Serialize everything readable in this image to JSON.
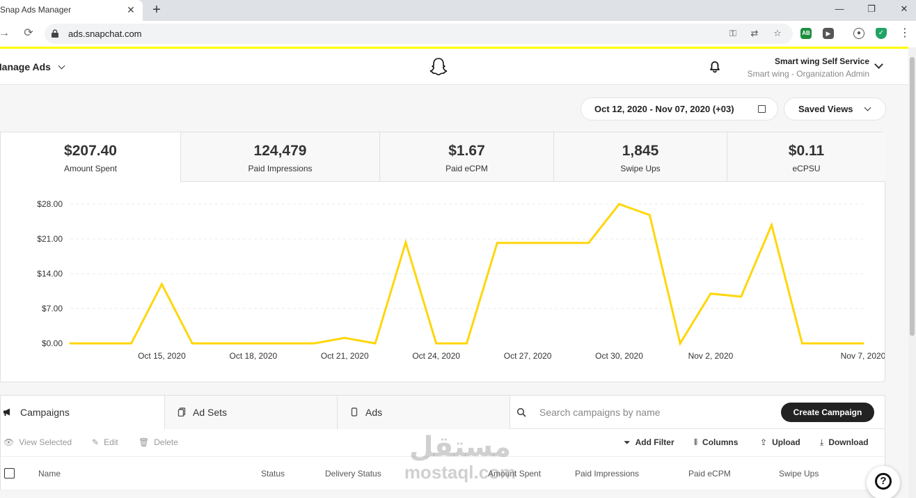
{
  "browser": {
    "tab_title": "Snap Ads Manager",
    "tab_close": "✕",
    "new_tab": "+",
    "url": "ads.snapchat.com",
    "window_minimize": "—",
    "window_restore": "❐",
    "window_close": "✕",
    "extension_ab": "AB"
  },
  "header": {
    "app_menu": "Manage Ads",
    "org_name": "Smart wing Self Service",
    "org_role": "Smart wing - Organization Admin"
  },
  "controls": {
    "date_range": "Oct 12, 2020 - Nov 07, 2020 (+03)",
    "saved_views": "Saved Views"
  },
  "metrics": [
    {
      "value": "$207.40",
      "label": "Amount Spent"
    },
    {
      "value": "124,479",
      "label": "Paid Impressions"
    },
    {
      "value": "$1.67",
      "label": "Paid eCPM"
    },
    {
      "value": "1,845",
      "label": "Swipe Ups"
    },
    {
      "value": "$0.11",
      "label": "eCPSU"
    }
  ],
  "chart_data": {
    "type": "line",
    "x": [
      "Oct 12",
      "Oct 13",
      "Oct 14",
      "Oct 15",
      "Oct 16",
      "Oct 17",
      "Oct 18",
      "Oct 19",
      "Oct 20",
      "Oct 21",
      "Oct 22",
      "Oct 23",
      "Oct 24",
      "Oct 25",
      "Oct 26",
      "Oct 27",
      "Oct 28",
      "Oct 29",
      "Oct 30",
      "Oct 31",
      "Nov 1",
      "Nov 2",
      "Nov 3",
      "Nov 4",
      "Nov 5",
      "Nov 6",
      "Nov 7"
    ],
    "series": [
      {
        "values": [
          0,
          0,
          0,
          11.9,
          0,
          0,
          0,
          0,
          0,
          1.1,
          0,
          20.3,
          0,
          0,
          20.2,
          20.2,
          20.2,
          20.2,
          28.0,
          25.8,
          0,
          10.0,
          9.4,
          23.8,
          0,
          0,
          0
        ],
        "color": "#ffd60a"
      }
    ],
    "xticks": [
      "Oct 15, 2020",
      "Oct 18, 2020",
      "Oct 21, 2020",
      "Oct 24, 2020",
      "Oct 27, 2020",
      "Oct 30, 2020",
      "Nov 2, 2020",
      "Nov 7, 2020"
    ],
    "xtick_index": [
      3,
      6,
      9,
      12,
      15,
      18,
      21,
      26
    ],
    "yticks": [
      "$0.00",
      "$7.00",
      "$14.00",
      "$21.00",
      "$28.00"
    ],
    "ytick_values": [
      0,
      7,
      14,
      21,
      28
    ],
    "ylim": [
      0,
      28
    ],
    "grid": true
  },
  "panel": {
    "tabs": [
      "Campaigns",
      "Ad Sets",
      "Ads"
    ],
    "search_placeholder": "Search campaigns by name",
    "create_button": "Create Campaign",
    "actions_left": [
      "View Selected",
      "Edit",
      "Delete"
    ],
    "actions_right": [
      "Add Filter",
      "Columns",
      "Upload",
      "Download"
    ],
    "columns": [
      "Name",
      "Status",
      "Delivery Status",
      "Amount Spent",
      "Paid Impressions",
      "Paid eCPM",
      "Swipe Ups"
    ]
  },
  "help": {
    "icon_text": "?"
  },
  "watermark": {
    "arabic": "مستقل",
    "latin": "mostaql.com"
  },
  "colors": {
    "brand_yellow": "#fffc00",
    "chart_line": "#ffd60a",
    "button_dark": "#222222"
  }
}
